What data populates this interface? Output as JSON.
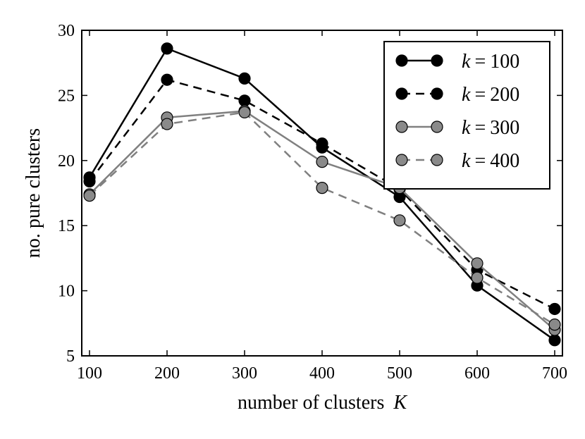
{
  "chart_data": {
    "type": "line",
    "xlabel": "number of clusters",
    "xlabel_var": "K",
    "ylabel": "no. pure clusters",
    "x": [
      100,
      200,
      300,
      400,
      500,
      600,
      700
    ],
    "xlim": [
      90,
      710
    ],
    "ylim": [
      5,
      30
    ],
    "xticks": [
      "100",
      "200",
      "300",
      "400",
      "500",
      "600",
      "700"
    ],
    "yticks": [
      "5",
      "10",
      "15",
      "20",
      "25",
      "30"
    ],
    "grid": false,
    "legend_position": "top-right",
    "series": [
      {
        "name": "k = 100",
        "var": "k",
        "value": "100",
        "color": "#000000",
        "marker_fill": "#000000",
        "line_style": "solid",
        "values": [
          18.7,
          28.6,
          26.3,
          21.0,
          17.2,
          10.4,
          6.2
        ]
      },
      {
        "name": "k = 200",
        "var": "k",
        "value": "200",
        "color": "#000000",
        "marker_fill": "#000000",
        "line_style": "dashed",
        "values": [
          18.4,
          26.2,
          24.6,
          21.3,
          17.8,
          11.6,
          8.6
        ]
      },
      {
        "name": "k = 300",
        "var": "k",
        "value": "300",
        "color": "#808080",
        "marker_fill": "#8a8a8a",
        "line_style": "solid",
        "values": [
          17.4,
          23.3,
          23.8,
          19.9,
          17.9,
          12.1,
          7.0
        ]
      },
      {
        "name": "k = 400",
        "var": "k",
        "value": "400",
        "color": "#808080",
        "marker_fill": "#8a8a8a",
        "line_style": "dashed",
        "values": [
          17.3,
          22.8,
          23.7,
          17.9,
          15.4,
          11.0,
          7.4
        ]
      }
    ]
  }
}
